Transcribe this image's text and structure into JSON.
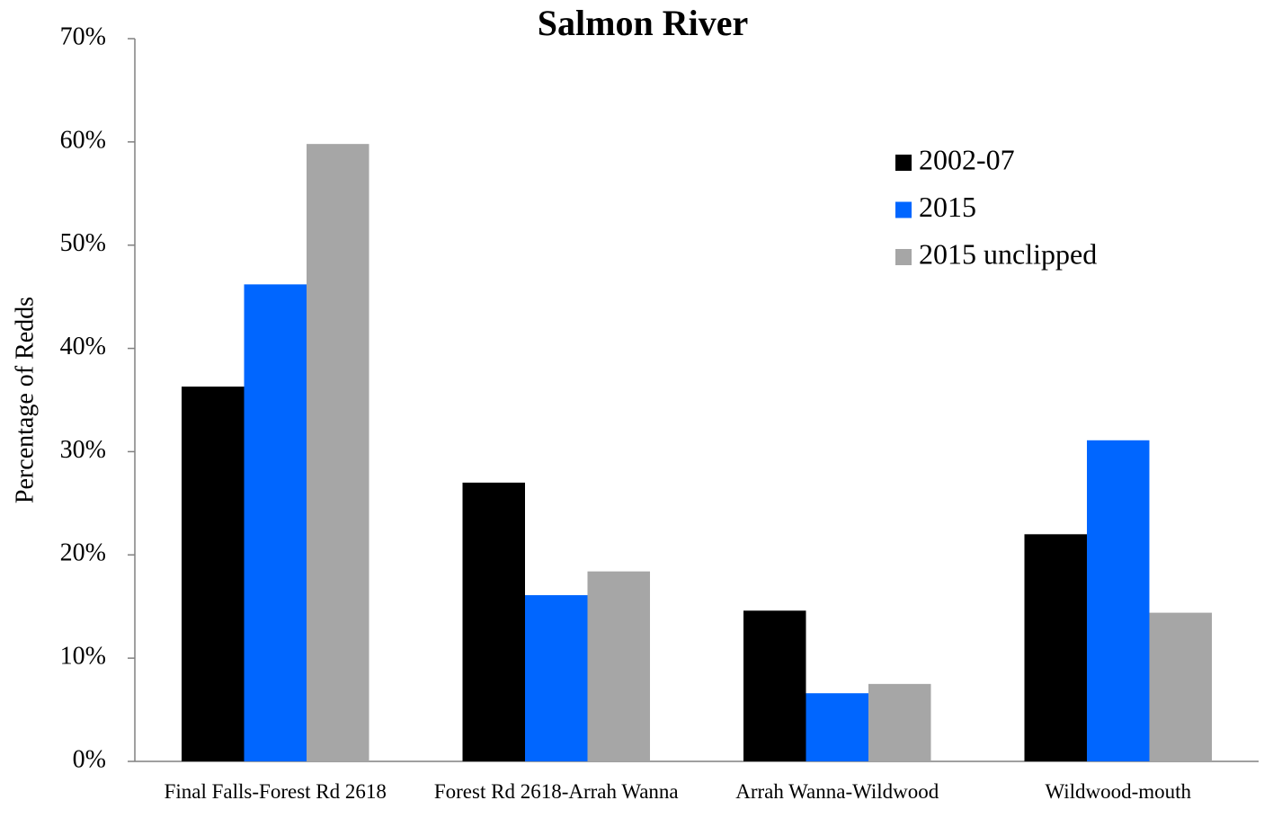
{
  "chart_data": {
    "type": "bar",
    "title": "Salmon River",
    "y_label": "Percentage of Redds",
    "categories": [
      "Final Falls-Forest Rd 2618",
      "Forest Rd 2618-Arrah Wanna",
      "Arrah Wanna-Wildwood",
      "Wildwood-mouth"
    ],
    "series": [
      {
        "name": "2002-07",
        "color": "#000000",
        "values": [
          36.3,
          27.0,
          14.6,
          22.0
        ]
      },
      {
        "name": "2015",
        "color": "#0066ff",
        "values": [
          46.2,
          16.1,
          6.6,
          31.1
        ]
      },
      {
        "name": "2015 unclipped",
        "color": "#a6a6a6",
        "values": [
          59.8,
          18.4,
          7.5,
          14.4
        ]
      }
    ],
    "ylim": [
      0,
      70
    ],
    "yticks": [
      {
        "value": 0,
        "label": "0%"
      },
      {
        "value": 10,
        "label": "10%"
      },
      {
        "value": 20,
        "label": "20%"
      },
      {
        "value": 30,
        "label": "30%"
      },
      {
        "value": 40,
        "label": "40%"
      },
      {
        "value": 50,
        "label": "50%"
      },
      {
        "value": 60,
        "label": "60%"
      },
      {
        "value": 70,
        "label": "70%"
      }
    ],
    "grid": false,
    "legend": "upper right"
  }
}
